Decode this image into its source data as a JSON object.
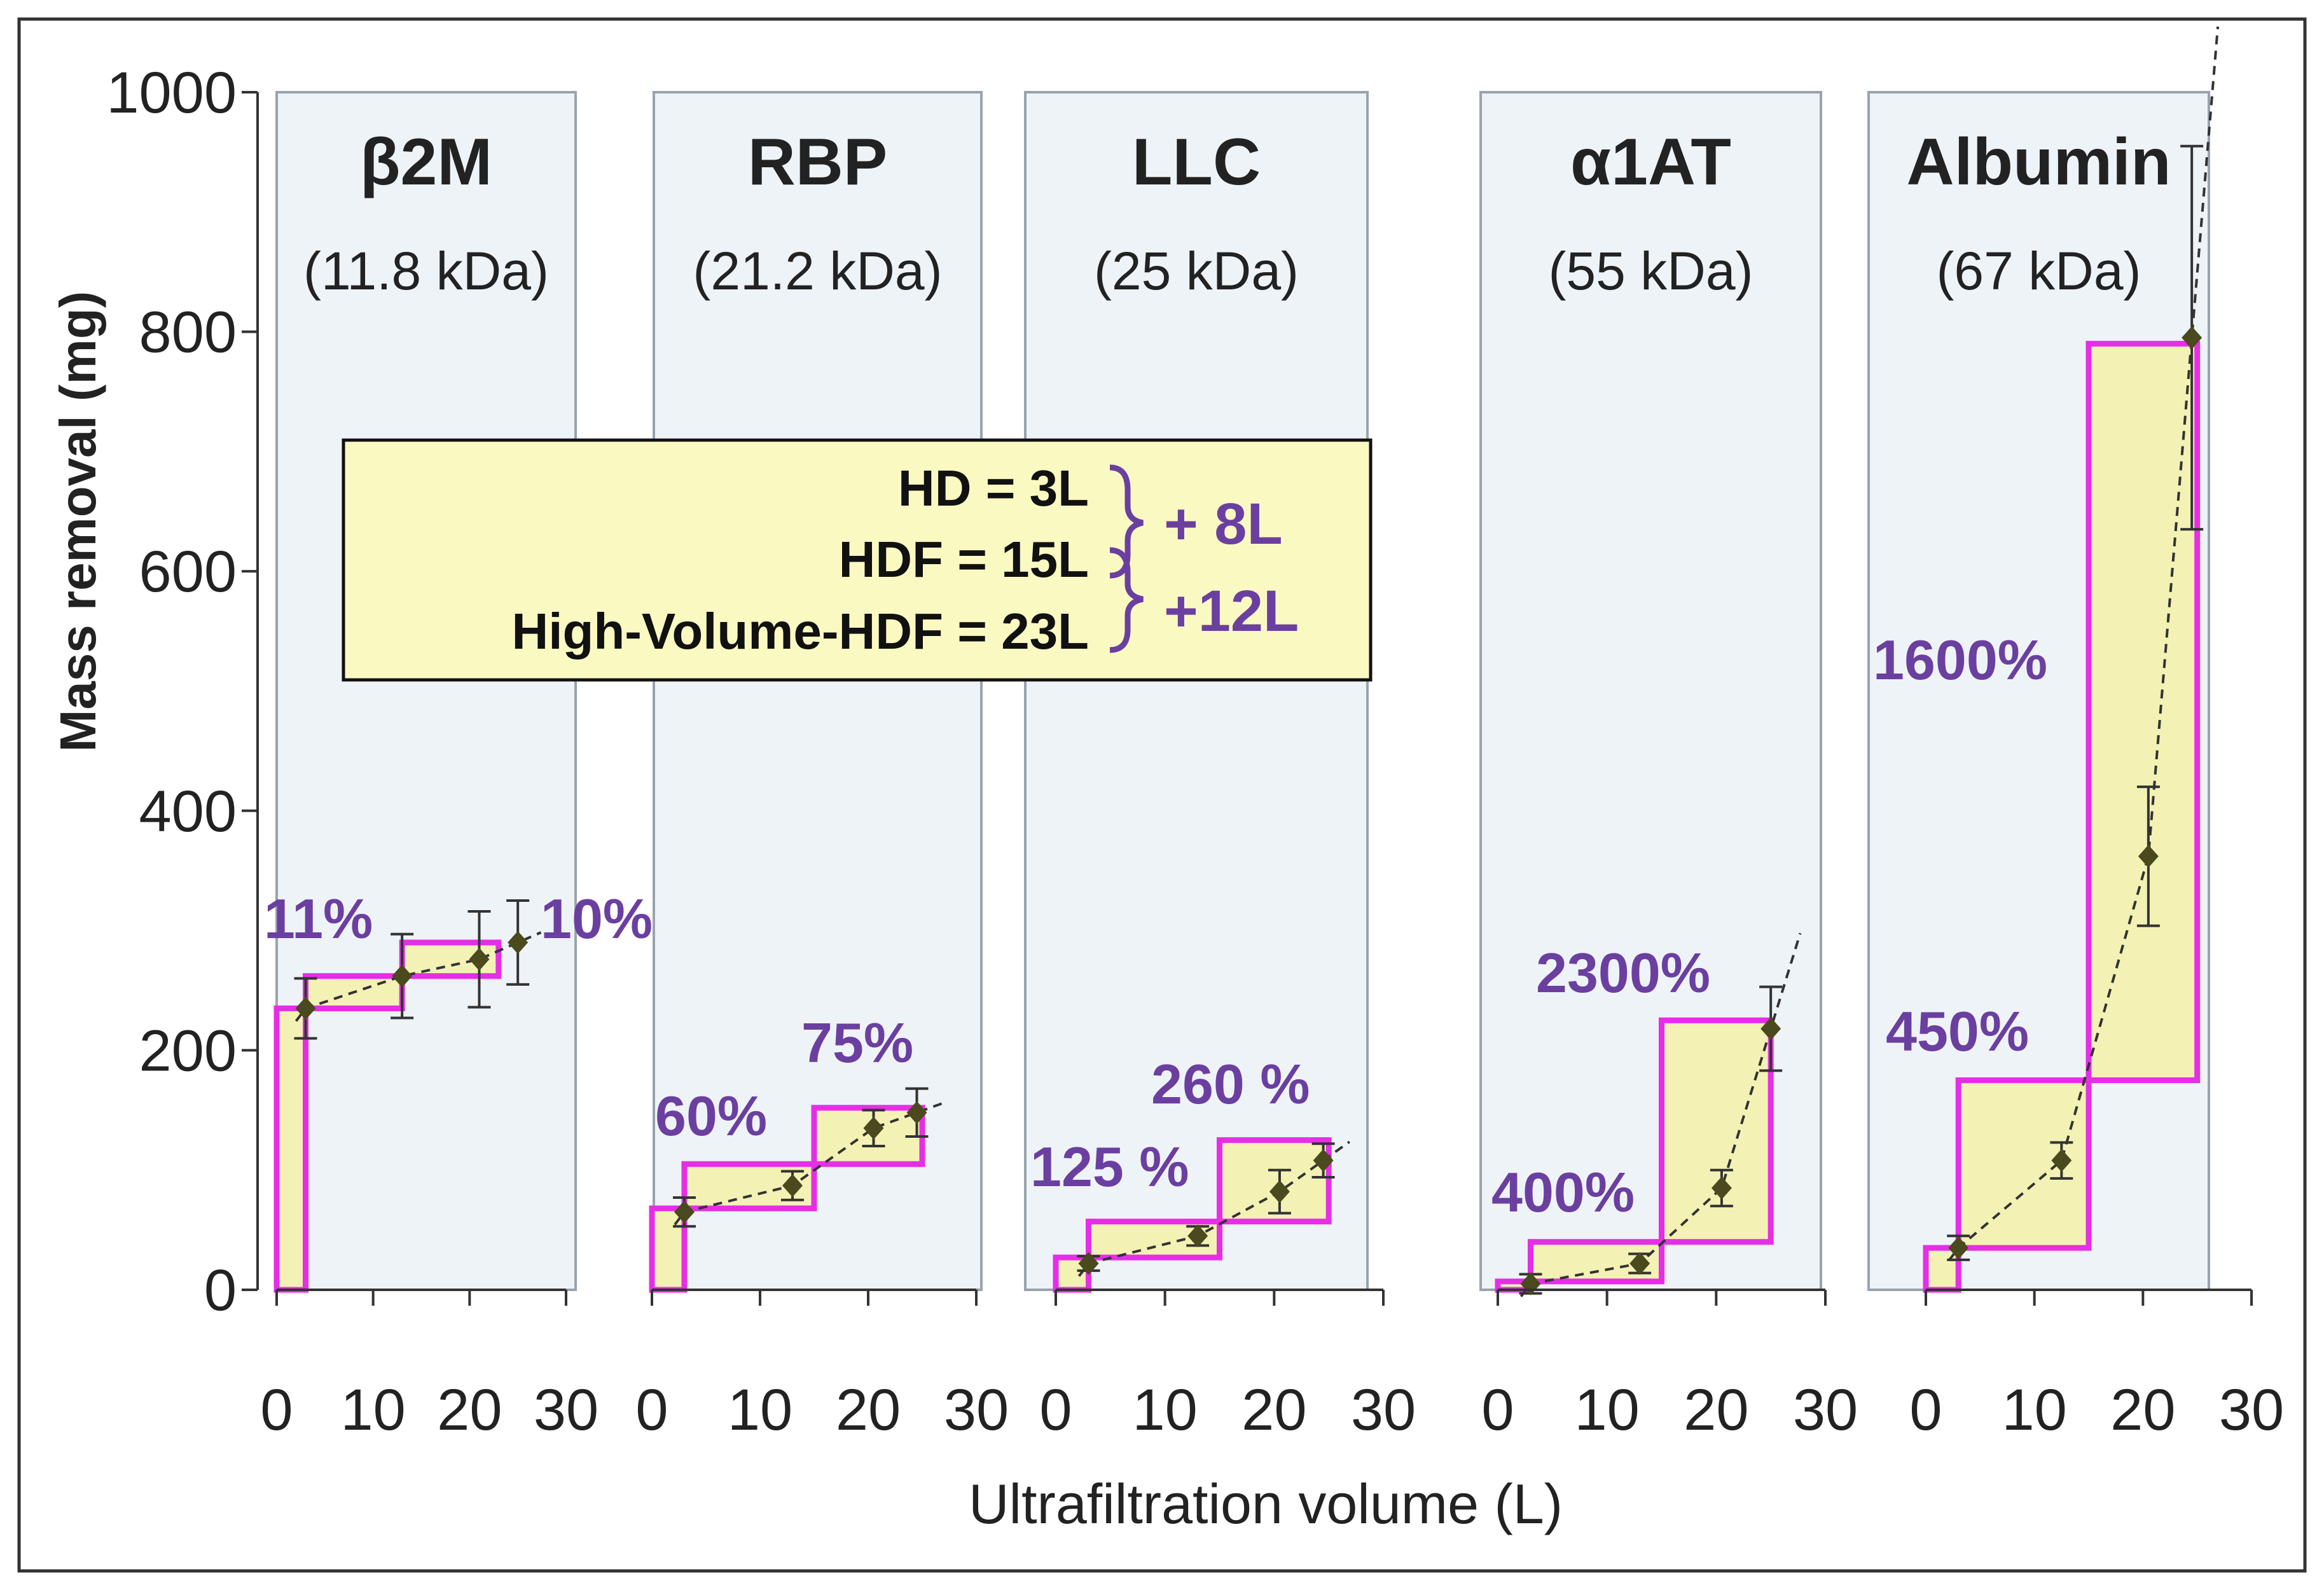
{
  "colors": {
    "panel_fill": "#eef3f8",
    "panel_border": "#9aa3ad",
    "highlight_fill": "#f3f2b4",
    "highlight_stroke": "#e62ee6",
    "annotation": "#6b3fa0",
    "marker": "#4a4a1e",
    "legend_fill": "#fbf9c2"
  },
  "chart_data": {
    "type": "scatter",
    "ylabel": "Mass removal (mg)",
    "xlabel": "Ultrafiltration volume (L)",
    "ylim": [
      0,
      1000
    ],
    "yticks": [
      "0",
      "200",
      "400",
      "600",
      "800",
      "1000"
    ],
    "xlim": [
      0,
      30
    ],
    "xticks": [
      "0",
      "10",
      "20",
      "30"
    ],
    "legend": {
      "lines": [
        "HD   =   3L",
        "HDF = 15L",
        "High-Volume-HDF = 23L"
      ],
      "increments": [
        "+ 8L",
        "+12L"
      ]
    },
    "panels": [
      {
        "title": "β2M",
        "subtitle": "(11.8 kDa)",
        "points": [
          {
            "x": 3,
            "y": 235,
            "err": 25
          },
          {
            "x": 13,
            "y": 262,
            "err": 35
          },
          {
            "x": 21,
            "y": 276,
            "err": 40
          },
          {
            "x": 25,
            "y": 290,
            "err": 35
          }
        ],
        "boxes": [
          [
            0,
            3,
            0,
            235
          ],
          [
            3,
            13,
            235,
            262
          ],
          [
            13,
            23,
            262,
            290
          ]
        ],
        "labels": [
          "11%",
          "10%"
        ]
      },
      {
        "title": "RBP",
        "subtitle": "(21.2 kDa)",
        "points": [
          {
            "x": 3,
            "y": 65,
            "err": 12
          },
          {
            "x": 13,
            "y": 87,
            "err": 12
          },
          {
            "x": 20.5,
            "y": 135,
            "err": 15
          },
          {
            "x": 24.5,
            "y": 148,
            "err": 20
          }
        ],
        "boxes": [
          [
            0,
            3,
            0,
            68
          ],
          [
            3,
            15,
            68,
            105
          ],
          [
            15,
            25,
            105,
            152
          ]
        ],
        "labels": [
          "60%",
          "75%"
        ]
      },
      {
        "title": "LLC",
        "subtitle": "(25 kDa)",
        "points": [
          {
            "x": 3,
            "y": 22,
            "err": 6
          },
          {
            "x": 13,
            "y": 45,
            "err": 8
          },
          {
            "x": 20.5,
            "y": 82,
            "err": 18
          },
          {
            "x": 24.5,
            "y": 108,
            "err": 14
          }
        ],
        "boxes": [
          [
            0,
            3,
            0,
            27
          ],
          [
            3,
            15,
            27,
            57
          ],
          [
            15,
            25,
            57,
            125
          ]
        ],
        "labels": [
          "125 %",
          "260 %"
        ]
      },
      {
        "title": "α1AT",
        "subtitle": "(55 kDa)",
        "points": [
          {
            "x": 3,
            "y": 5,
            "err": 8
          },
          {
            "x": 13,
            "y": 22,
            "err": 8
          },
          {
            "x": 20.5,
            "y": 85,
            "err": 15
          },
          {
            "x": 25,
            "y": 218,
            "err": 35
          }
        ],
        "boxes": [
          [
            0,
            3,
            0,
            7
          ],
          [
            3,
            15,
            7,
            40
          ],
          [
            15,
            25,
            40,
            225
          ]
        ],
        "labels": [
          "400%",
          "2300%"
        ]
      },
      {
        "title": "Albumin",
        "subtitle": "(67 kDa)",
        "points": [
          {
            "x": 3,
            "y": 35,
            "err": 10
          },
          {
            "x": 12.5,
            "y": 108,
            "err": 15
          },
          {
            "x": 20.5,
            "y": 362,
            "err": 58
          },
          {
            "x": 24.5,
            "y": 795,
            "err": 160
          }
        ],
        "boxes": [
          [
            0,
            3,
            0,
            35
          ],
          [
            3,
            15,
            35,
            175
          ],
          [
            15,
            25,
            175,
            790
          ]
        ],
        "labels": [
          "450%",
          "1600%"
        ]
      }
    ]
  }
}
